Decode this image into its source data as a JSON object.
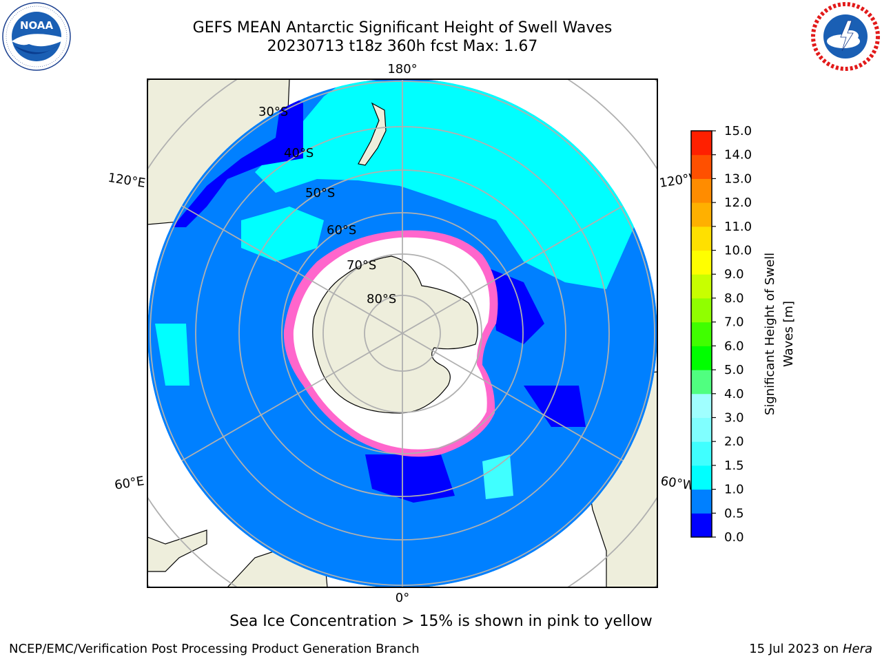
{
  "title": {
    "line1": "GEFS MEAN Antarctic Significant Height of Swell Waves",
    "line2": "20230713 t18z 360h fcst   Max: 1.67"
  },
  "logos": {
    "left": {
      "name": "NOAA",
      "text": "NOAA",
      "ring_text": "NATIONAL OCEANIC AND ATMOSPHERIC ADMINISTRATION · U.S. DEPARTMENT OF COMMERCE"
    },
    "right": {
      "name": "National Weather Service",
      "ring_text": "NATIONAL WEATHER SERVICE"
    }
  },
  "map": {
    "projection": "south polar stereographic",
    "longitude_labels": {
      "top": "180°",
      "bottom": "0°",
      "left_upper": "120°E",
      "left_lower": "60°E",
      "right_upper": "120°W",
      "right_lower": "60°W"
    },
    "latitude_labels": [
      "30°S",
      "40°S",
      "50°S",
      "60°S",
      "70°S",
      "80°S"
    ],
    "colors": {
      "land": "#eeeedc",
      "ice_free_ocean_missing": "#ffffff",
      "graticule": "#b0b0b0",
      "sea_ice": "#ff66cc"
    }
  },
  "colorbar": {
    "label_line1": "Significant Height of Swell",
    "label_line2": "Waves [m]",
    "ticks": [
      "0.0",
      "0.5",
      "1.0",
      "1.5",
      "2.0",
      "3.0",
      "4.0",
      "5.0",
      "6.0",
      "7.0",
      "8.0",
      "9.0",
      "10.0",
      "11.0",
      "12.0",
      "13.0",
      "14.0",
      "15.0"
    ],
    "colors": [
      "#0000ff",
      "#0080ff",
      "#00ffff",
      "#40ffff",
      "#80ffff",
      "#a0ffff",
      "#50ff80",
      "#00ff00",
      "#40ff00",
      "#90ff00",
      "#c8ff00",
      "#ffff00",
      "#ffe000",
      "#ffb000",
      "#ff8c00",
      "#ff5000",
      "#ff2000"
    ]
  },
  "caption": "Sea Ice Concentration > 15% is shown in pink to yellow",
  "footer": {
    "left": "NCEP/EMC/Verification Post Processing Product Generation Branch",
    "right_date": "15 Jul 2023 on ",
    "right_host": "Hera"
  }
}
